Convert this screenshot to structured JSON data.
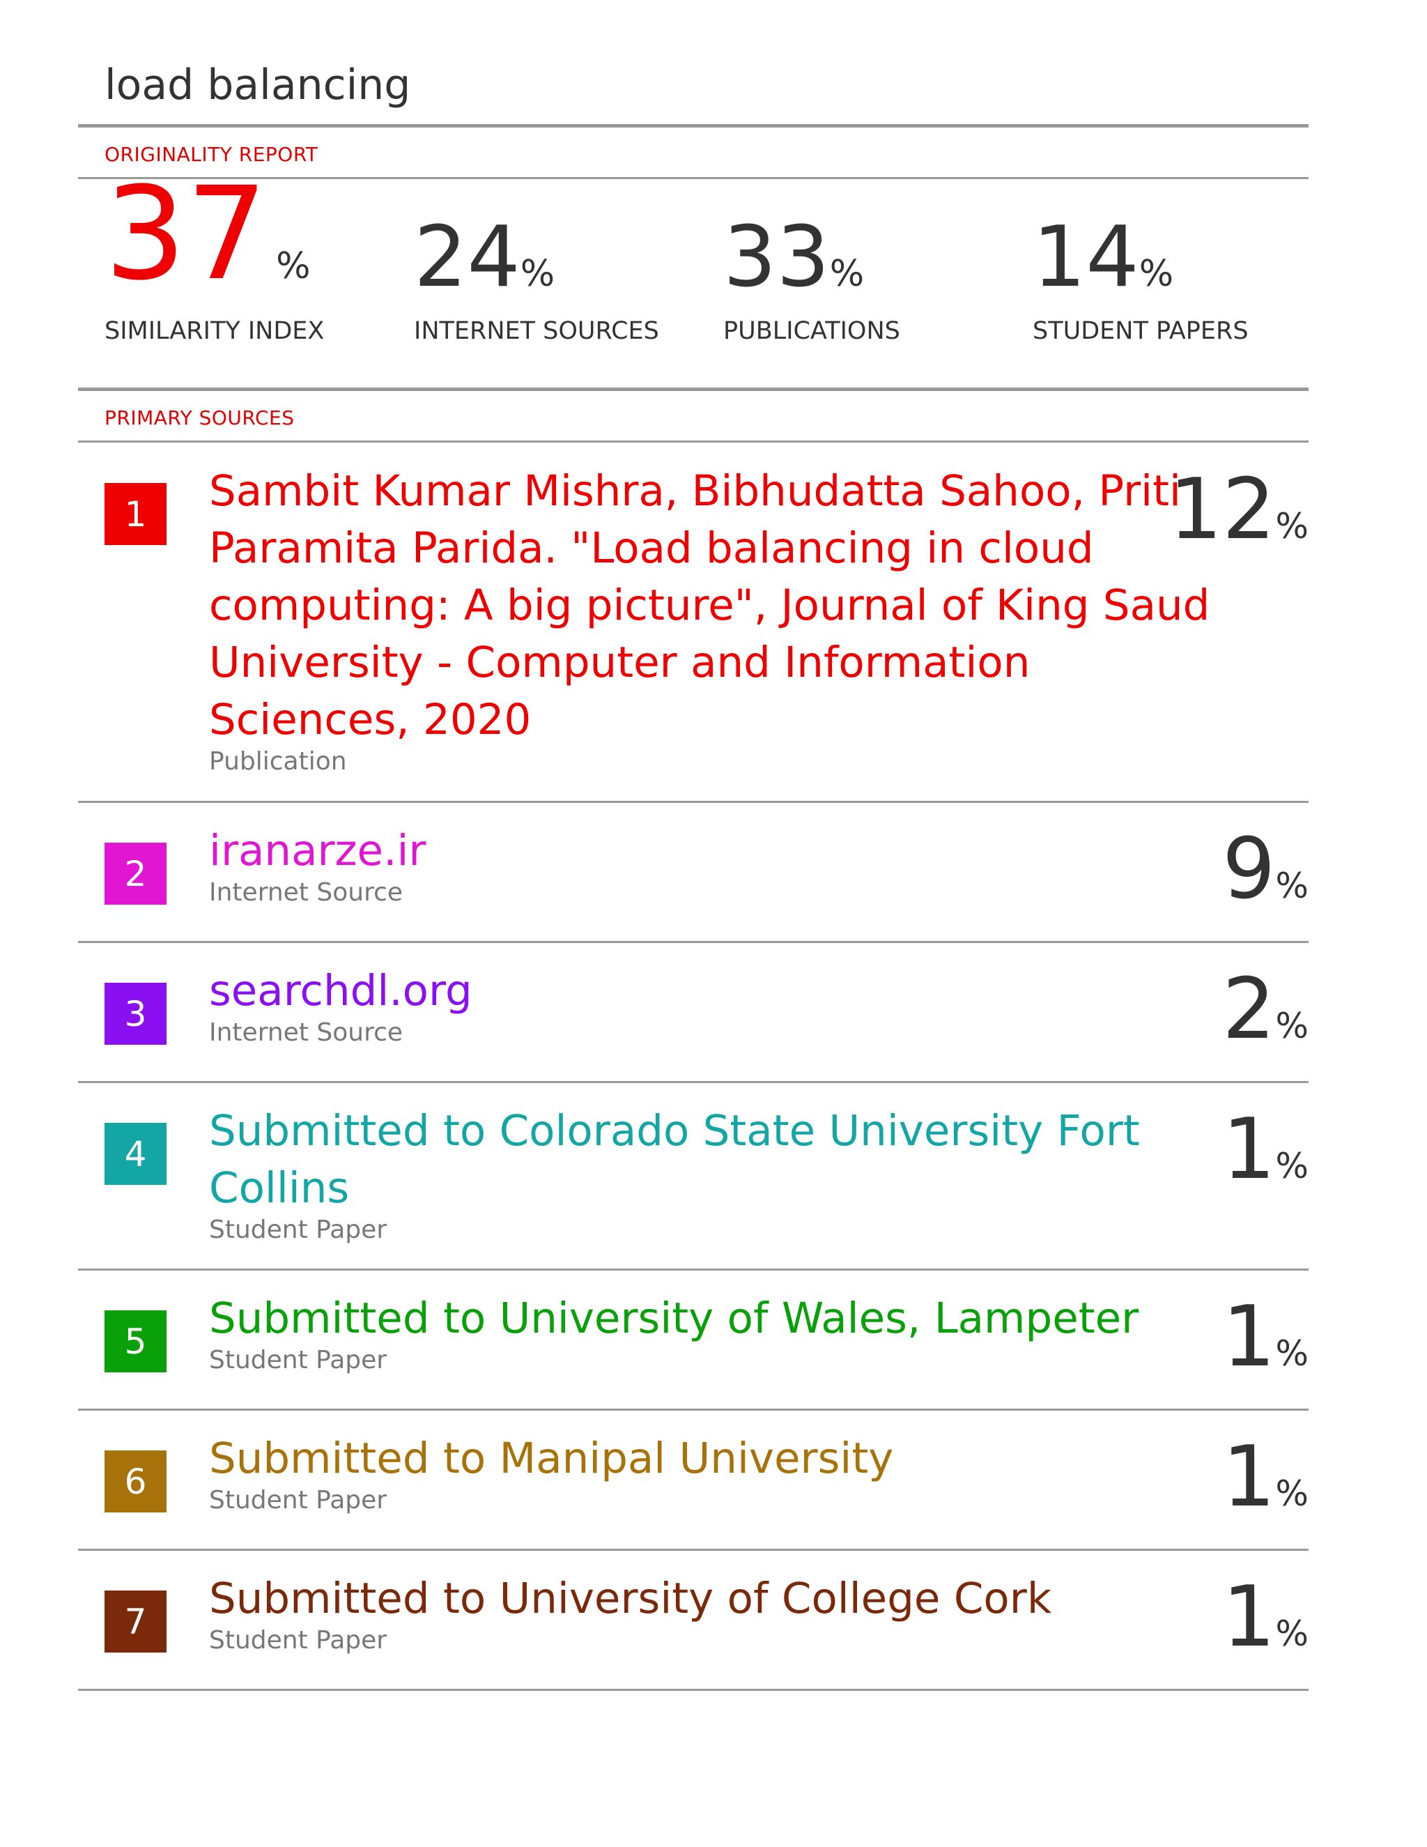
{
  "title": "load balancing",
  "originality_label": "ORIGINALITY REPORT",
  "stats": {
    "similarity": {
      "value": "37",
      "unit": "%",
      "label": "SIMILARITY INDEX"
    },
    "internet": {
      "value": "24",
      "unit": "%",
      "label": "INTERNET SOURCES"
    },
    "publications": {
      "value": "33",
      "unit": "%",
      "label": "PUBLICATIONS"
    },
    "student": {
      "value": "14",
      "unit": "%",
      "label": "STUDENT PAPERS"
    }
  },
  "primary_label": "PRIMARY SOURCES",
  "sources": [
    {
      "num": "1",
      "title": "Sambit Kumar Mishra, Bibhudatta Sahoo, Priti Paramita Parida. \"Load balancing in cloud computing: A big picture\", Journal of King Saud University - Computer and Information Sciences, 2020",
      "type": "Publication",
      "pct": "12",
      "unit": "%",
      "color": "#ee0000"
    },
    {
      "num": "2",
      "title": "iranarze.ir",
      "type": "Internet Source",
      "pct": "9",
      "unit": "%",
      "color": "#e016d2"
    },
    {
      "num": "3",
      "title": "searchdl.org",
      "type": "Internet Source",
      "pct": "2",
      "unit": "%",
      "color": "#8a10f2"
    },
    {
      "num": "4",
      "title": "Submitted to Colorado State University Fort Collins",
      "type": "Student Paper",
      "pct": "1",
      "unit": "%",
      "color": "#14a5a5"
    },
    {
      "num": "5",
      "title": "Submitted to University of Wales, Lampeter",
      "type": "Student Paper",
      "pct": "1",
      "unit": "%",
      "color": "#0aa00a"
    },
    {
      "num": "6",
      "title": "Submitted to Manipal University",
      "type": "Student Paper",
      "pct": "1",
      "unit": "%",
      "color": "#a8720a"
    },
    {
      "num": "7",
      "title": "Submitted to University of College Cork",
      "type": "Student Paper",
      "pct": "1",
      "unit": "%",
      "color": "#7a2a0a"
    }
  ]
}
